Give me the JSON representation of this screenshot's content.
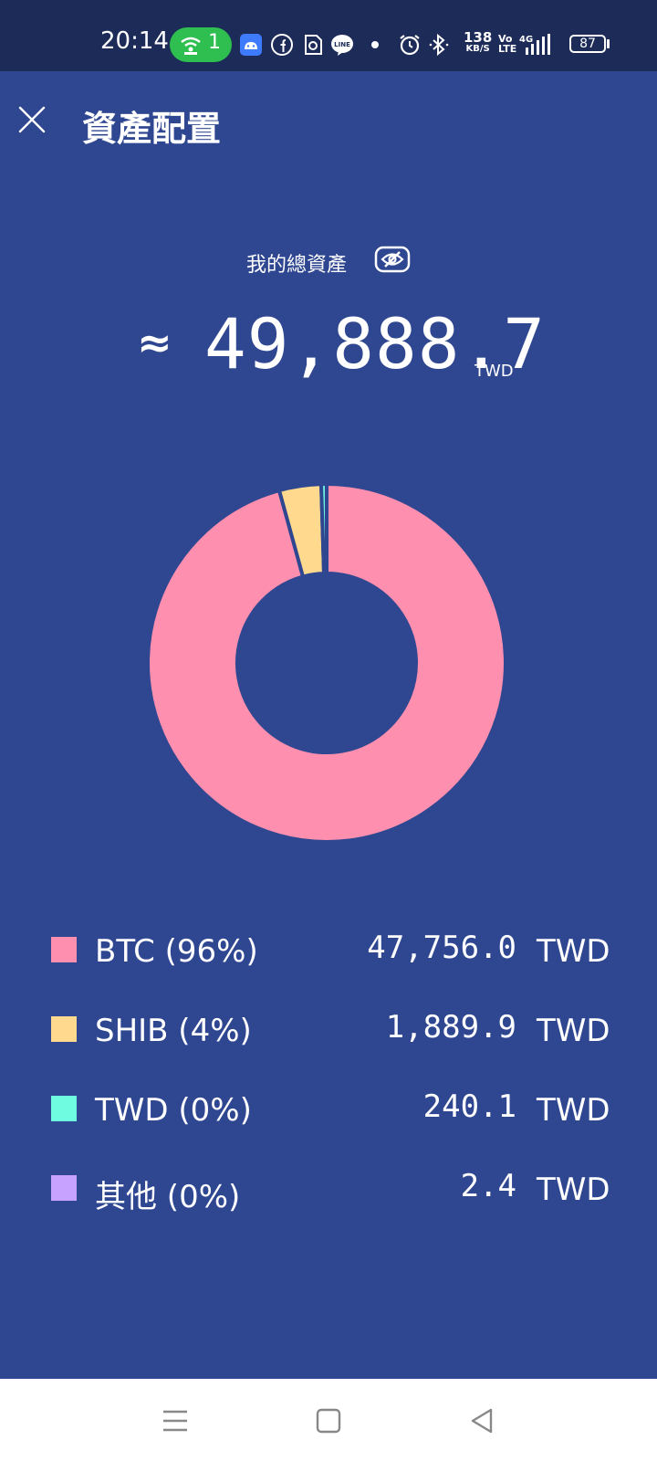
{
  "status_bar": {
    "time": "20:14",
    "hotspot_count": "1",
    "net_speed_value": "138",
    "net_speed_unit": "KB/S",
    "volte": "Vo LTE",
    "battery": "87",
    "icons": [
      "hotspot-icon",
      "android-icon",
      "facebook-icon",
      "sticker-icon",
      "line-icon",
      "dot-icon",
      "alarm-icon",
      "bluetooth-icon",
      "signal-4g-icon",
      "battery-icon"
    ]
  },
  "header": {
    "close_icon": "close-icon",
    "title": "資產配置"
  },
  "summary": {
    "label": "我的總資產",
    "visibility_icon": "eye-off-icon",
    "approx_symbol": "≈",
    "total": "49,888.7",
    "unit": "TWD"
  },
  "colors": {
    "background": "#2f4791",
    "status_bar": "#1c2b58",
    "btc": "#ff8fae",
    "shib": "#ffd98e",
    "twd": "#6ffbe0",
    "other": "#c8a2ff"
  },
  "chart_data": {
    "type": "pie",
    "labels": [
      "BTC",
      "SHIB",
      "TWD",
      "其他"
    ],
    "values": [
      47756.0,
      1889.9,
      240.1,
      2.4
    ],
    "percent_labels": [
      "96%",
      "4%",
      "0%",
      "0%"
    ],
    "colors": [
      "#ff8fae",
      "#ffd98e",
      "#6ffbe0",
      "#c8a2ff"
    ],
    "donut": true
  },
  "legend": [
    {
      "label": "BTC (96%)",
      "value": "47,756.0",
      "unit": "TWD",
      "color": "#ff8fae"
    },
    {
      "label": "SHIB (4%)",
      "value": "1,889.9",
      "unit": "TWD",
      "color": "#ffd98e"
    },
    {
      "label": "TWD (0%)",
      "value": "240.1",
      "unit": "TWD",
      "color": "#6ffbe0"
    },
    {
      "label": "其他 (0%)",
      "value": "2.4",
      "unit": "TWD",
      "color": "#c8a2ff"
    }
  ],
  "nav_bar": {
    "icons": [
      "menu-icon",
      "home-icon",
      "back-icon"
    ]
  }
}
